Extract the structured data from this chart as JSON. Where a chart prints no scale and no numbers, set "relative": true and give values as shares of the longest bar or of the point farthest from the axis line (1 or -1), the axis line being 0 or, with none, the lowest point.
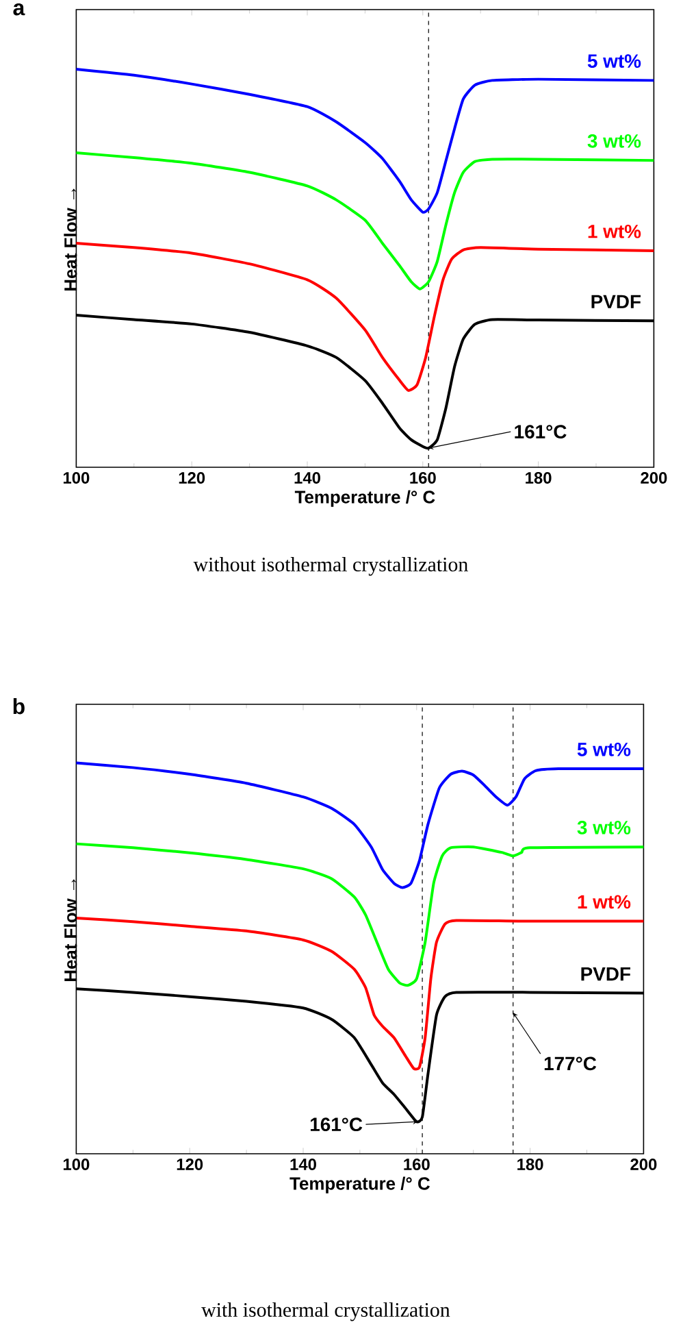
{
  "chart_data": [
    {
      "type": "line",
      "title": "a",
      "xlabel": "Temperature /° C",
      "ylabel": "Heat Flow →",
      "relative": true,
      "xlim": [
        100,
        200
      ],
      "xticks": [
        100,
        120,
        140,
        160,
        180,
        200
      ],
      "ref_lines": [
        {
          "axis": "x",
          "value": 161,
          "line_style": "dashed"
        }
      ],
      "annotations": [
        {
          "text": "161°C",
          "x": 161,
          "y": 0.048
        },
        "without isothermal crystallization"
      ],
      "series": [
        {
          "name": "5 wt%",
          "color": "#0000ff",
          "x": [
            100,
            110,
            120,
            130,
            140,
            145,
            150,
            153,
            156,
            158,
            160,
            161,
            162.5,
            164,
            165.5,
            167,
            169,
            172,
            180,
            200
          ],
          "values": [
            1.0,
            0.985,
            0.963,
            0.937,
            0.906,
            0.868,
            0.816,
            0.776,
            0.718,
            0.672,
            0.641,
            0.649,
            0.69,
            0.77,
            0.851,
            0.925,
            0.96,
            0.972,
            0.975,
            0.972
          ]
        },
        {
          "name": "3 wt%",
          "color": "#00ff00",
          "x": [
            100,
            110,
            120,
            130,
            140,
            145,
            150,
            153,
            156,
            158,
            159.5,
            161,
            162.5,
            164,
            165.5,
            167,
            169,
            172,
            180,
            200
          ],
          "values": [
            0.79,
            0.778,
            0.764,
            0.741,
            0.707,
            0.672,
            0.621,
            0.563,
            0.506,
            0.466,
            0.448,
            0.466,
            0.517,
            0.609,
            0.69,
            0.741,
            0.768,
            0.774,
            0.774,
            0.771
          ]
        },
        {
          "name": "1 wt%",
          "color": "#ff0000",
          "x": [
            100,
            110,
            120,
            130,
            140,
            145,
            150,
            153,
            156,
            157.5,
            159,
            160.5,
            162,
            163.5,
            165,
            167,
            170,
            180,
            200
          ],
          "values": [
            0.563,
            0.552,
            0.538,
            0.511,
            0.471,
            0.425,
            0.345,
            0.276,
            0.218,
            0.193,
            0.207,
            0.276,
            0.379,
            0.471,
            0.523,
            0.546,
            0.552,
            0.548,
            0.544
          ]
        },
        {
          "name": "PVDF",
          "color": "#000000",
          "x": [
            100,
            110,
            120,
            130,
            140,
            145,
            150,
            153,
            156,
            158,
            160,
            161,
            162.5,
            164,
            165.5,
            167,
            169,
            172,
            180,
            200
          ],
          "values": [
            0.382,
            0.371,
            0.36,
            0.339,
            0.305,
            0.276,
            0.218,
            0.161,
            0.098,
            0.069,
            0.052,
            0.048,
            0.069,
            0.149,
            0.253,
            0.322,
            0.359,
            0.371,
            0.37,
            0.368
          ]
        }
      ]
    },
    {
      "type": "line",
      "title": "b",
      "xlabel": "Temperature /° C",
      "ylabel": "Heat Flow →",
      "relative": true,
      "xlim": [
        100,
        200
      ],
      "xticks": [
        100,
        120,
        140,
        160,
        180,
        200
      ],
      "ref_lines": [
        {
          "axis": "x",
          "value": 161,
          "line_style": "dashed"
        },
        {
          "axis": "x",
          "value": 177,
          "line_style": "dashed"
        }
      ],
      "annotations": [
        {
          "text": "161°C",
          "x": 160.2,
          "y": 0.082
        },
        {
          "text": "177°C",
          "x": 177,
          "y": 0.361
        },
        "with isothermal crystallization"
      ],
      "series": [
        {
          "name": "5 wt%",
          "color": "#0000ff",
          "x": [
            100,
            110,
            120,
            130,
            140,
            145,
            149,
            152,
            154,
            156,
            157.5,
            159,
            160.5,
            162,
            164,
            166,
            168,
            170,
            172,
            174,
            176,
            177.5,
            179,
            181,
            185,
            200
          ],
          "values": [
            1.0,
            0.988,
            0.971,
            0.948,
            0.913,
            0.884,
            0.843,
            0.785,
            0.727,
            0.692,
            0.681,
            0.692,
            0.75,
            0.843,
            0.936,
            0.971,
            0.979,
            0.969,
            0.942,
            0.913,
            0.892,
            0.913,
            0.959,
            0.98,
            0.985,
            0.985
          ]
        },
        {
          "name": "3 wt%",
          "color": "#00ff00",
          "x": [
            100,
            110,
            120,
            130,
            140,
            145,
            149,
            151,
            153,
            155,
            157,
            158.5,
            160,
            161.5,
            163,
            164.5,
            166,
            170,
            175,
            177,
            178.5,
            180,
            200
          ],
          "values": [
            0.793,
            0.783,
            0.77,
            0.753,
            0.729,
            0.704,
            0.657,
            0.611,
            0.541,
            0.472,
            0.437,
            0.431,
            0.448,
            0.541,
            0.692,
            0.762,
            0.783,
            0.785,
            0.771,
            0.762,
            0.771,
            0.783,
            0.785
          ]
        },
        {
          "name": "1 wt%",
          "color": "#ff0000",
          "x": [
            100,
            110,
            120,
            130,
            140,
            145,
            149,
            151,
            152.5,
            154,
            156,
            158,
            159.5,
            160.5,
            161.5,
            162.5,
            163.5,
            165,
            167,
            180,
            200
          ],
          "values": [
            0.603,
            0.594,
            0.582,
            0.57,
            0.547,
            0.518,
            0.472,
            0.425,
            0.355,
            0.326,
            0.297,
            0.251,
            0.218,
            0.222,
            0.297,
            0.448,
            0.541,
            0.588,
            0.597,
            0.595,
            0.595
          ]
        },
        {
          "name": "PVDF",
          "color": "#000000",
          "x": [
            100,
            110,
            120,
            130,
            140,
            145,
            149,
            152,
            154,
            156,
            158,
            160,
            161,
            162,
            163.5,
            165,
            167,
            180,
            200
          ],
          "values": [
            0.422,
            0.413,
            0.402,
            0.39,
            0.373,
            0.344,
            0.297,
            0.228,
            0.181,
            0.152,
            0.117,
            0.082,
            0.094,
            0.204,
            0.355,
            0.402,
            0.413,
            0.413,
            0.411
          ]
        }
      ]
    }
  ]
}
